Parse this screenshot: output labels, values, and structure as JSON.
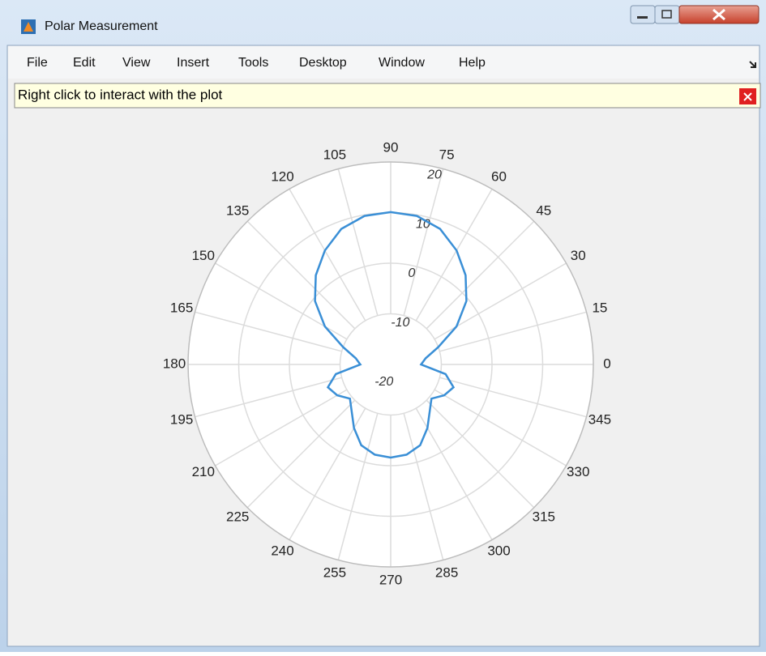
{
  "window": {
    "title": "Polar Measurement"
  },
  "menu": [
    "File",
    "Edit",
    "View",
    "Insert",
    "Tools",
    "Desktop",
    "Window",
    "Help"
  ],
  "infobar": {
    "text": "Right click to interact with the plot"
  },
  "chart_data": {
    "type": "polar",
    "thetaticks": [
      0,
      15,
      30,
      45,
      60,
      75,
      90,
      105,
      120,
      135,
      150,
      165,
      180,
      195,
      210,
      225,
      240,
      255,
      270,
      285,
      300,
      315,
      330,
      345
    ],
    "rlim": [
      -20,
      20
    ],
    "rticks": [
      -20,
      -10,
      0,
      10,
      20
    ],
    "grid": true,
    "series": [
      {
        "color": "#3a8fd6",
        "theta": [
          0,
          10,
          20,
          30,
          40,
          50,
          60,
          70,
          80,
          90,
          100,
          110,
          120,
          130,
          140,
          150,
          160,
          170,
          180,
          190,
          200,
          210,
          220,
          230,
          240,
          250,
          260,
          270,
          280,
          290,
          300,
          310,
          320,
          330,
          340,
          350
        ],
        "values": [
          -14,
          -13,
          -10,
          -5,
          -0.5,
          3,
          6,
          8.5,
          9.8,
          10.1,
          9.8,
          8.5,
          6,
          3,
          -0.5,
          -5,
          -10,
          -13,
          -14,
          -9,
          -6.8,
          -7.8,
          -9.5,
          -8,
          -5.5,
          -3,
          -1.9,
          -1.6,
          -1.9,
          -3,
          -5.5,
          -8,
          -9.5,
          -7.8,
          -6.8,
          -9
        ]
      }
    ]
  }
}
